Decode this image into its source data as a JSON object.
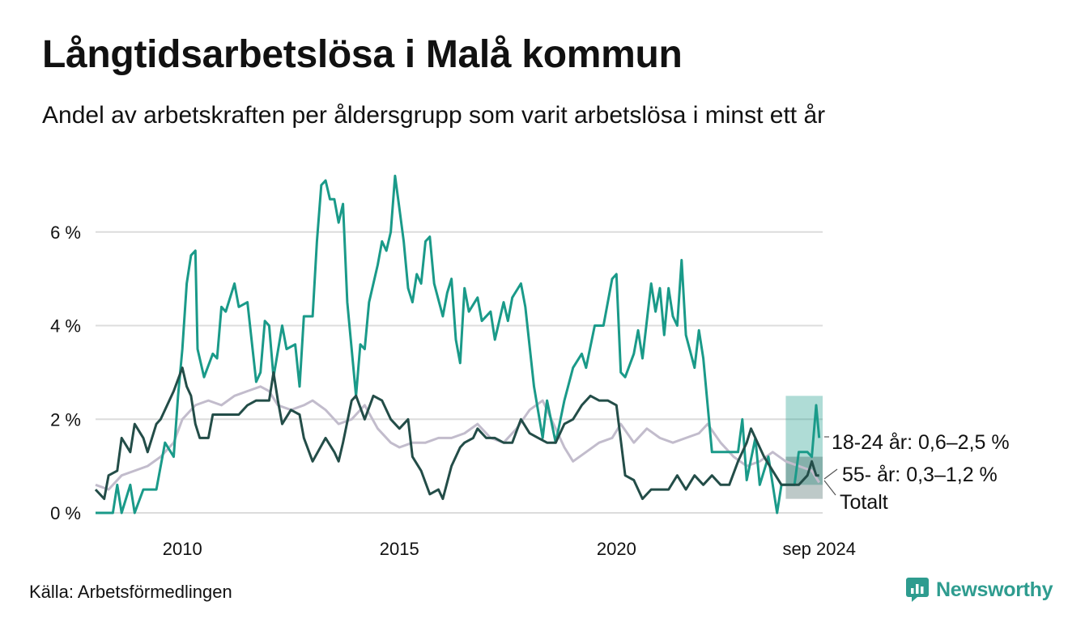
{
  "title": "Långtidsarbetslösa i Malå kommun",
  "subtitle": "Andel av arbetskraften per åldersgrupp som varit arbetslösa i minst ett år",
  "source": "Källa: Arbetsförmedlingen",
  "brand": "Newsworthy",
  "chart_data": {
    "type": "line",
    "ylim": [
      0,
      7.5
    ],
    "xlim": [
      2008.0,
      2024.75
    ],
    "y_ticks": [
      {
        "value": 0,
        "label": "0 %"
      },
      {
        "value": 2,
        "label": "2 %"
      },
      {
        "value": 4,
        "label": "4 %"
      },
      {
        "value": 6,
        "label": "6 %"
      }
    ],
    "x_ticks": [
      {
        "value": 2010,
        "label": "2010"
      },
      {
        "value": 2015,
        "label": "2015"
      },
      {
        "value": 2020,
        "label": "2020"
      },
      {
        "value": 2024.67,
        "label": "sep 2024"
      }
    ],
    "grid": true,
    "series": [
      {
        "name": "Totalt",
        "label": "Totalt",
        "color": "#c2bccc",
        "points": [
          [
            2008.0,
            0.6
          ],
          [
            2008.3,
            0.5
          ],
          [
            2008.6,
            0.8
          ],
          [
            2008.9,
            0.9
          ],
          [
            2009.2,
            1.0
          ],
          [
            2009.5,
            1.2
          ],
          [
            2009.8,
            1.5
          ],
          [
            2010.0,
            2.0
          ],
          [
            2010.3,
            2.3
          ],
          [
            2010.6,
            2.4
          ],
          [
            2010.9,
            2.3
          ],
          [
            2011.2,
            2.5
          ],
          [
            2011.5,
            2.6
          ],
          [
            2011.8,
            2.7
          ],
          [
            2012.0,
            2.6
          ],
          [
            2012.2,
            2.3
          ],
          [
            2012.5,
            2.2
          ],
          [
            2012.8,
            2.3
          ],
          [
            2013.0,
            2.4
          ],
          [
            2013.3,
            2.2
          ],
          [
            2013.6,
            1.9
          ],
          [
            2013.9,
            2.0
          ],
          [
            2014.2,
            2.3
          ],
          [
            2014.5,
            1.8
          ],
          [
            2014.8,
            1.5
          ],
          [
            2015.0,
            1.4
          ],
          [
            2015.3,
            1.5
          ],
          [
            2015.6,
            1.5
          ],
          [
            2015.9,
            1.6
          ],
          [
            2016.2,
            1.6
          ],
          [
            2016.5,
            1.7
          ],
          [
            2016.8,
            1.9
          ],
          [
            2017.1,
            1.6
          ],
          [
            2017.4,
            1.5
          ],
          [
            2017.7,
            1.8
          ],
          [
            2018.0,
            2.2
          ],
          [
            2018.3,
            2.4
          ],
          [
            2018.5,
            2.0
          ],
          [
            2018.8,
            1.4
          ],
          [
            2019.0,
            1.1
          ],
          [
            2019.3,
            1.3
          ],
          [
            2019.6,
            1.5
          ],
          [
            2019.9,
            1.6
          ],
          [
            2020.1,
            1.9
          ],
          [
            2020.4,
            1.5
          ],
          [
            2020.7,
            1.8
          ],
          [
            2021.0,
            1.6
          ],
          [
            2021.3,
            1.5
          ],
          [
            2021.6,
            1.6
          ],
          [
            2021.9,
            1.7
          ],
          [
            2022.1,
            1.9
          ],
          [
            2022.4,
            1.5
          ],
          [
            2022.7,
            1.2
          ],
          [
            2023.0,
            1.0
          ],
          [
            2023.3,
            1.1
          ],
          [
            2023.6,
            1.3
          ],
          [
            2023.9,
            1.1
          ],
          [
            2024.2,
            1.0
          ],
          [
            2024.5,
            0.9
          ],
          [
            2024.67,
            0.65
          ]
        ]
      },
      {
        "name": "18-24 år",
        "label": "18-24 år: 0,6–2,5 %",
        "color": "#1a9a89",
        "points": [
          [
            2008.0,
            0.0
          ],
          [
            2008.4,
            0.0
          ],
          [
            2008.5,
            0.6
          ],
          [
            2008.6,
            0.0
          ],
          [
            2008.8,
            0.6
          ],
          [
            2008.9,
            0.0
          ],
          [
            2009.1,
            0.5
          ],
          [
            2009.4,
            0.5
          ],
          [
            2009.6,
            1.5
          ],
          [
            2009.8,
            1.2
          ],
          [
            2009.9,
            2.5
          ],
          [
            2010.0,
            3.5
          ],
          [
            2010.1,
            4.9
          ],
          [
            2010.2,
            5.5
          ],
          [
            2010.3,
            5.6
          ],
          [
            2010.35,
            3.5
          ],
          [
            2010.5,
            2.9
          ],
          [
            2010.7,
            3.4
          ],
          [
            2010.8,
            3.3
          ],
          [
            2010.9,
            4.4
          ],
          [
            2011.0,
            4.3
          ],
          [
            2011.2,
            4.9
          ],
          [
            2011.3,
            4.4
          ],
          [
            2011.5,
            4.5
          ],
          [
            2011.7,
            2.8
          ],
          [
            2011.8,
            3.0
          ],
          [
            2011.9,
            4.1
          ],
          [
            2012.0,
            4.0
          ],
          [
            2012.1,
            2.9
          ],
          [
            2012.3,
            4.0
          ],
          [
            2012.4,
            3.5
          ],
          [
            2012.6,
            3.6
          ],
          [
            2012.7,
            2.7
          ],
          [
            2012.8,
            4.2
          ],
          [
            2013.0,
            4.2
          ],
          [
            2013.1,
            5.8
          ],
          [
            2013.2,
            7.0
          ],
          [
            2013.3,
            7.1
          ],
          [
            2013.4,
            6.7
          ],
          [
            2013.5,
            6.7
          ],
          [
            2013.6,
            6.2
          ],
          [
            2013.7,
            6.6
          ],
          [
            2013.8,
            4.5
          ],
          [
            2013.9,
            3.5
          ],
          [
            2014.0,
            2.5
          ],
          [
            2014.1,
            3.6
          ],
          [
            2014.2,
            3.5
          ],
          [
            2014.3,
            4.5
          ],
          [
            2014.5,
            5.3
          ],
          [
            2014.6,
            5.8
          ],
          [
            2014.7,
            5.6
          ],
          [
            2014.8,
            6.0
          ],
          [
            2014.9,
            7.2
          ],
          [
            2015.0,
            6.5
          ],
          [
            2015.1,
            5.8
          ],
          [
            2015.2,
            4.8
          ],
          [
            2015.3,
            4.5
          ],
          [
            2015.4,
            5.1
          ],
          [
            2015.5,
            4.9
          ],
          [
            2015.6,
            5.8
          ],
          [
            2015.7,
            5.9
          ],
          [
            2015.8,
            4.9
          ],
          [
            2016.0,
            4.2
          ],
          [
            2016.1,
            4.7
          ],
          [
            2016.2,
            5.0
          ],
          [
            2016.3,
            3.7
          ],
          [
            2016.4,
            3.2
          ],
          [
            2016.5,
            4.8
          ],
          [
            2016.6,
            4.3
          ],
          [
            2016.8,
            4.6
          ],
          [
            2016.9,
            4.1
          ],
          [
            2017.1,
            4.3
          ],
          [
            2017.2,
            3.7
          ],
          [
            2017.4,
            4.5
          ],
          [
            2017.5,
            4.1
          ],
          [
            2017.6,
            4.6
          ],
          [
            2017.8,
            4.9
          ],
          [
            2017.9,
            4.4
          ],
          [
            2018.1,
            2.7
          ],
          [
            2018.3,
            1.6
          ],
          [
            2018.4,
            2.4
          ],
          [
            2018.6,
            1.5
          ],
          [
            2018.8,
            2.4
          ],
          [
            2019.0,
            3.1
          ],
          [
            2019.2,
            3.4
          ],
          [
            2019.3,
            3.1
          ],
          [
            2019.5,
            4.0
          ],
          [
            2019.7,
            4.0
          ],
          [
            2019.9,
            5.0
          ],
          [
            2020.0,
            5.1
          ],
          [
            2020.1,
            3.0
          ],
          [
            2020.2,
            2.9
          ],
          [
            2020.4,
            3.4
          ],
          [
            2020.5,
            3.9
          ],
          [
            2020.6,
            3.3
          ],
          [
            2020.8,
            4.9
          ],
          [
            2020.9,
            4.3
          ],
          [
            2021.0,
            4.8
          ],
          [
            2021.1,
            3.8
          ],
          [
            2021.2,
            4.8
          ],
          [
            2021.3,
            4.2
          ],
          [
            2021.4,
            4.0
          ],
          [
            2021.5,
            5.4
          ],
          [
            2021.6,
            3.8
          ],
          [
            2021.8,
            3.1
          ],
          [
            2021.9,
            3.9
          ],
          [
            2022.0,
            3.3
          ],
          [
            2022.2,
            1.3
          ],
          [
            2022.5,
            1.3
          ],
          [
            2022.8,
            1.3
          ],
          [
            2022.9,
            2.0
          ],
          [
            2023.0,
            0.7
          ],
          [
            2023.2,
            1.6
          ],
          [
            2023.3,
            0.6
          ],
          [
            2023.5,
            1.2
          ],
          [
            2023.7,
            0.0
          ],
          [
            2023.8,
            0.6
          ],
          [
            2024.1,
            0.6
          ],
          [
            2024.2,
            1.3
          ],
          [
            2024.4,
            1.3
          ],
          [
            2024.5,
            1.2
          ],
          [
            2024.6,
            2.3
          ],
          [
            2024.67,
            1.6
          ]
        ]
      },
      {
        "name": "55- år",
        "label": "55- år: 0,3–1,2 %",
        "color": "#234d48",
        "points": [
          [
            2008.0,
            0.5
          ],
          [
            2008.2,
            0.3
          ],
          [
            2008.3,
            0.8
          ],
          [
            2008.5,
            0.9
          ],
          [
            2008.6,
            1.6
          ],
          [
            2008.8,
            1.3
          ],
          [
            2008.9,
            1.9
          ],
          [
            2009.1,
            1.6
          ],
          [
            2009.2,
            1.3
          ],
          [
            2009.4,
            1.9
          ],
          [
            2009.5,
            2.0
          ],
          [
            2009.7,
            2.4
          ],
          [
            2009.8,
            2.6
          ],
          [
            2010.0,
            3.1
          ],
          [
            2010.1,
            2.7
          ],
          [
            2010.2,
            2.5
          ],
          [
            2010.3,
            1.9
          ],
          [
            2010.4,
            1.6
          ],
          [
            2010.6,
            1.6
          ],
          [
            2010.7,
            2.1
          ],
          [
            2011.0,
            2.1
          ],
          [
            2011.3,
            2.1
          ],
          [
            2011.5,
            2.3
          ],
          [
            2011.7,
            2.4
          ],
          [
            2012.0,
            2.4
          ],
          [
            2012.1,
            3.0
          ],
          [
            2012.2,
            2.4
          ],
          [
            2012.3,
            1.9
          ],
          [
            2012.5,
            2.2
          ],
          [
            2012.7,
            2.1
          ],
          [
            2012.8,
            1.6
          ],
          [
            2013.0,
            1.1
          ],
          [
            2013.3,
            1.6
          ],
          [
            2013.5,
            1.3
          ],
          [
            2013.6,
            1.1
          ],
          [
            2013.7,
            1.5
          ],
          [
            2013.9,
            2.4
          ],
          [
            2014.0,
            2.5
          ],
          [
            2014.2,
            2.0
          ],
          [
            2014.4,
            2.5
          ],
          [
            2014.6,
            2.4
          ],
          [
            2014.8,
            2.0
          ],
          [
            2015.0,
            1.8
          ],
          [
            2015.2,
            2.0
          ],
          [
            2015.3,
            1.2
          ],
          [
            2015.5,
            0.9
          ],
          [
            2015.7,
            0.4
          ],
          [
            2015.9,
            0.5
          ],
          [
            2016.0,
            0.3
          ],
          [
            2016.2,
            1.0
          ],
          [
            2016.4,
            1.4
          ],
          [
            2016.5,
            1.5
          ],
          [
            2016.7,
            1.6
          ],
          [
            2016.8,
            1.8
          ],
          [
            2017.0,
            1.6
          ],
          [
            2017.2,
            1.6
          ],
          [
            2017.4,
            1.5
          ],
          [
            2017.6,
            1.5
          ],
          [
            2017.8,
            2.0
          ],
          [
            2018.0,
            1.7
          ],
          [
            2018.2,
            1.6
          ],
          [
            2018.4,
            1.5
          ],
          [
            2018.6,
            1.5
          ],
          [
            2018.8,
            1.9
          ],
          [
            2019.0,
            2.0
          ],
          [
            2019.2,
            2.3
          ],
          [
            2019.4,
            2.5
          ],
          [
            2019.6,
            2.4
          ],
          [
            2019.8,
            2.4
          ],
          [
            2020.0,
            2.3
          ],
          [
            2020.2,
            0.8
          ],
          [
            2020.4,
            0.7
          ],
          [
            2020.6,
            0.3
          ],
          [
            2020.8,
            0.5
          ],
          [
            2021.0,
            0.5
          ],
          [
            2021.2,
            0.5
          ],
          [
            2021.4,
            0.8
          ],
          [
            2021.6,
            0.5
          ],
          [
            2021.8,
            0.8
          ],
          [
            2022.0,
            0.6
          ],
          [
            2022.2,
            0.8
          ],
          [
            2022.4,
            0.6
          ],
          [
            2022.6,
            0.6
          ],
          [
            2022.8,
            1.1
          ],
          [
            2023.0,
            1.5
          ],
          [
            2023.1,
            1.8
          ],
          [
            2023.2,
            1.6
          ],
          [
            2023.4,
            1.2
          ],
          [
            2023.6,
            0.9
          ],
          [
            2023.8,
            0.6
          ],
          [
            2024.0,
            0.6
          ],
          [
            2024.2,
            0.6
          ],
          [
            2024.4,
            0.8
          ],
          [
            2024.5,
            1.1
          ],
          [
            2024.6,
            0.8
          ],
          [
            2024.67,
            0.8
          ]
        ]
      }
    ]
  }
}
